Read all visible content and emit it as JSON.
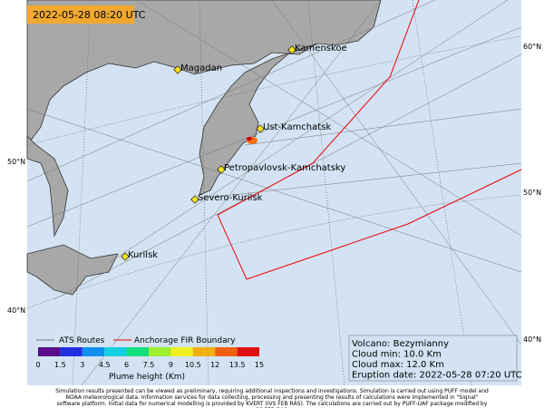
{
  "timestamp": "2022-05-28 08:20 UTC",
  "places": [
    "Kamenskoe",
    "Magadan",
    "Ust-Kamchatsk",
    "Petropavlovsk-Kamchatsky",
    "Severo-Kurilsk",
    "Kurilsk"
  ],
  "lat_labels_left": [
    "50°N",
    "40°N"
  ],
  "lat_labels_right": [
    "60°N",
    "50°N",
    "40°N"
  ],
  "legend": {
    "routes": "ATS Routes",
    "fir": "Anchorage FIR Boundary",
    "ticks": [
      "0",
      "1.5",
      "3",
      "4.5",
      "6",
      "7.5",
      "9",
      "10.5",
      "12",
      "13.5",
      "15"
    ],
    "title": "Plume height (Km)"
  },
  "info": [
    "Volcano: Bezymianny",
    "Cloud min: 10.0 Km",
    "Cloud max: 12.0 Km",
    "Eruption date: 2022-05-28 07:20 UTC"
  ],
  "footer": "Simulation results presented can be viewed as preliminary, requiring additional inspections and investigations. Simulation is carried out using PUFF model and NOAA meteorological data. Information services for data collecting, processing and presenting the results of calculations were implemented in \"Signal\" software platform. Initial data for numerical modelling is provided by KVERT (IVS FEB RAS). The calculations are carried out by PUFF-UAF package modified by CC FEB RAS."
}
